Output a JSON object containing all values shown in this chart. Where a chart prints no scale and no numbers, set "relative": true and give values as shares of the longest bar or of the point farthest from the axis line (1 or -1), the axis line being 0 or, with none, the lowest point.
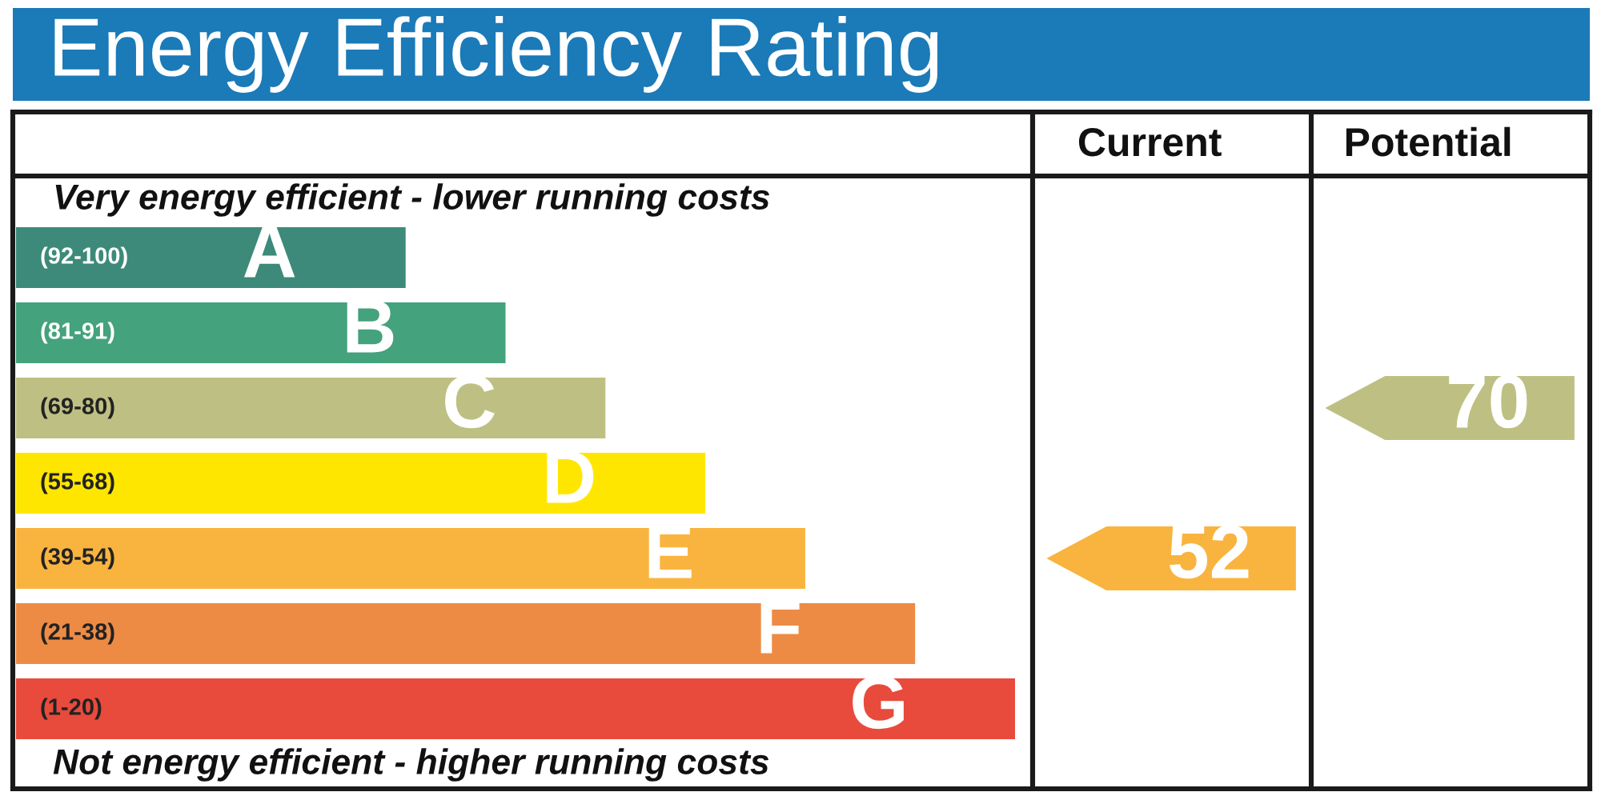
{
  "chart_data": [
    {
      "type": "bar",
      "orientation": "horizontal",
      "relative": true,
      "title": "Energy Efficiency Rating",
      "categories": [
        "A",
        "B",
        "C",
        "D",
        "E",
        "F",
        "G"
      ],
      "values": [
        0.39,
        0.49,
        0.59,
        0.69,
        0.79,
        0.9,
        1
      ],
      "colors": [
        "#3d8a7a",
        "#44a27d",
        "#bec083",
        "#ffe600",
        "#f9b43f",
        "#ed8b45",
        "#e84a3c"
      ],
      "annotations": [
        "Very energy efficient - lower running costs",
        "(92-100)",
        "(81-91)",
        "(69-80)",
        "(55-68)",
        "(39-54)",
        "(21-38)",
        "(1-20)",
        "Not energy efficient - higher running costs"
      ]
    },
    {
      "type": "other",
      "categories": [
        "Current",
        "Potential"
      ],
      "annotations": [
        {
          "text": "52",
          "x": "Current",
          "y": "E"
        },
        {
          "text": "70",
          "x": "Potential",
          "y": "C"
        }
      ]
    }
  ]
}
